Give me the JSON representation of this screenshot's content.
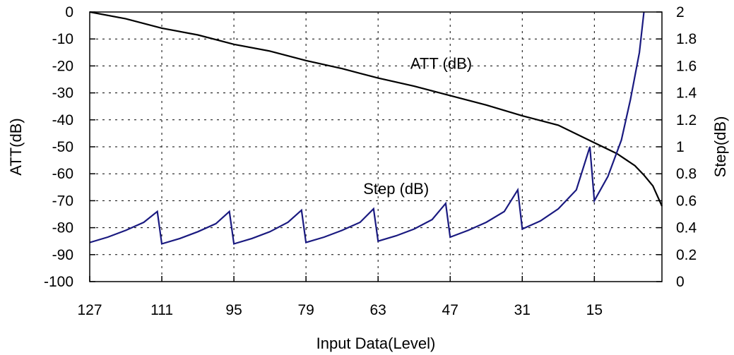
{
  "chart_data": {
    "type": "line",
    "xlabel": "Input Data(Level)",
    "ylabel_left": "ATT(dB)",
    "ylabel_right": "Step(dB)",
    "x_ticks": [
      127,
      111,
      95,
      79,
      63,
      47,
      31,
      15
    ],
    "xlim": [
      127,
      0
    ],
    "ylim_left": [
      -100,
      0
    ],
    "ylim_right": [
      0,
      2
    ],
    "y_ticks_left": [
      0,
      -10,
      -20,
      -30,
      -40,
      -50,
      -60,
      -70,
      -80,
      -90,
      -100
    ],
    "y_ticks_right": [
      "2",
      "1.8",
      "1.6",
      "1.4",
      "1.2",
      "1",
      "0.8",
      "0.6",
      "0.4",
      "0.2",
      "0"
    ],
    "grid": true,
    "annotations": [
      {
        "text": "ATT (dB)",
        "x": 49,
        "y": -19
      },
      {
        "text": "Step (dB)",
        "x": 59,
        "y": -65.5
      }
    ],
    "series": [
      {
        "axis": "left",
        "color": "#000000",
        "x": [
          127,
          119,
          111,
          103,
          95,
          87,
          79,
          71,
          63,
          55,
          47,
          39,
          31,
          23,
          15,
          10,
          6,
          4,
          2,
          0
        ],
        "y": [
          0,
          -2.5,
          -6,
          -8.5,
          -12,
          -14.5,
          -18,
          -21,
          -24.5,
          -27.5,
          -31,
          -34.5,
          -38.5,
          -42,
          -48.5,
          -52.5,
          -57,
          -60.5,
          -64.5,
          -72
        ]
      },
      {
        "axis": "right",
        "color": "#1a1a80",
        "segments": [
          {
            "x": [
              127,
              123,
              119,
              115,
              112
            ],
            "y": [
              0.29,
              0.33,
              0.38,
              0.44,
              0.52
            ]
          },
          {
            "x": [
              111,
              107,
              103,
              99,
              96
            ],
            "y": [
              0.28,
              0.32,
              0.37,
              0.43,
              0.52
            ]
          },
          {
            "x": [
              95,
              91,
              87,
              83,
              80
            ],
            "y": [
              0.28,
              0.32,
              0.37,
              0.44,
              0.53
            ]
          },
          {
            "x": [
              79,
              75,
              71,
              67,
              64
            ],
            "y": [
              0.29,
              0.33,
              0.38,
              0.44,
              0.54
            ]
          },
          {
            "x": [
              63,
              59,
              55,
              51,
              48
            ],
            "y": [
              0.3,
              0.34,
              0.39,
              0.46,
              0.58
            ]
          },
          {
            "x": [
              47,
              43,
              39,
              35,
              32
            ],
            "y": [
              0.33,
              0.38,
              0.44,
              0.52,
              0.68
            ]
          },
          {
            "x": [
              31,
              27,
              23,
              19,
              16
            ],
            "y": [
              0.39,
              0.45,
              0.54,
              0.68,
              1.0
            ]
          },
          {
            "x": [
              15,
              12,
              9,
              7,
              5,
              4
            ],
            "y": [
              0.6,
              0.78,
              1.05,
              1.35,
              1.7,
              2.0
            ]
          }
        ]
      }
    ]
  }
}
